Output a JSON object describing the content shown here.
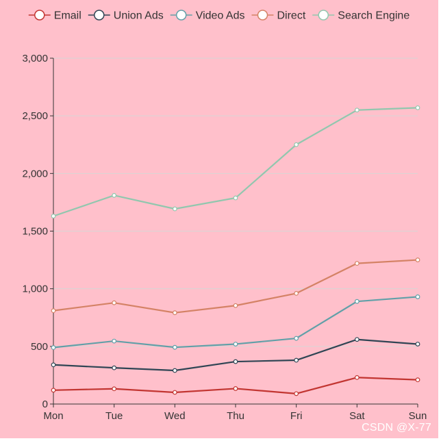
{
  "chart_data": {
    "type": "line",
    "categories": [
      "Mon",
      "Tue",
      "Wed",
      "Thu",
      "Fri",
      "Sat",
      "Sun"
    ],
    "ylim": [
      0,
      3000
    ],
    "yticks": [
      0,
      500,
      1000,
      1500,
      2000,
      2500,
      3000
    ],
    "ytick_labels": [
      "0",
      "500",
      "1,000",
      "1,500",
      "2,000",
      "2,500",
      "3,000"
    ],
    "grid": true,
    "legend_position": "top",
    "series": [
      {
        "name": "Email",
        "color": "#c23531",
        "values": [
          120,
          132,
          101,
          134,
          90,
          230,
          210
        ]
      },
      {
        "name": "Union Ads",
        "color": "#2f4554",
        "values": [
          340,
          314,
          291,
          368,
          380,
          560,
          520
        ]
      },
      {
        "name": "Video Ads",
        "color": "#61a0a8",
        "values": [
          490,
          546,
          492,
          520,
          570,
          890,
          930
        ]
      },
      {
        "name": "Direct",
        "color": "#d48265",
        "values": [
          810,
          878,
          792,
          854,
          960,
          1220,
          1250
        ]
      },
      {
        "name": "Search Engine",
        "color": "#91c7ae",
        "values": [
          1630,
          1810,
          1693,
          1788,
          2250,
          2550,
          2570
        ]
      }
    ]
  },
  "watermark": "CSDN @X-77"
}
